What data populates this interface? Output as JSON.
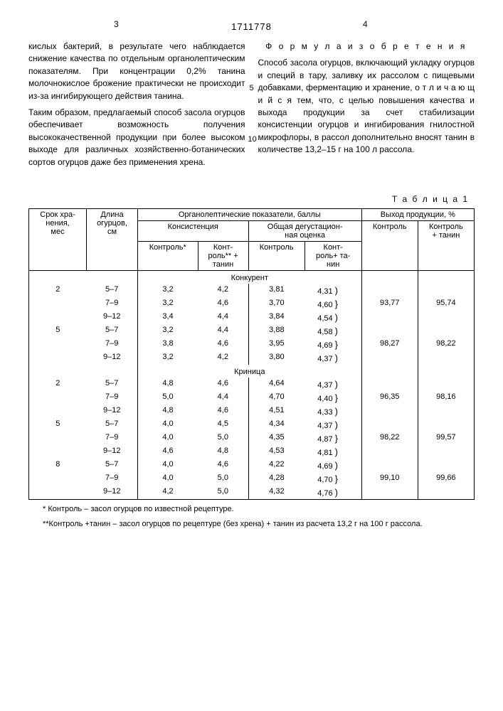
{
  "doc_number": "1711778",
  "page_marker_left": "3",
  "page_marker_right": "4",
  "left_col": {
    "para1": "кислых бактерий, в результате чего наблюдается снижение качества по отдельным органолептическим показателям. При концентрации 0,2% танина молочнокислое брожение практически не происходит из-за ингибирующего действия танина.",
    "para2": "Таким образом, предлагаемый способ засола огурцов обеспечивает возможность получения высококачественной продукции при более высоком выходе для различных хозяйственно-ботанических сортов огурцов даже без применения хрена."
  },
  "right_col": {
    "formula_title": "Ф о р м у л а  и з о б р е т е н и я",
    "para1": "Способ засола огурцов, включающий укладку огурцов и специй в тару, заливку их рассолом с пищевыми добавками, ферментацию и хранение, о т л и ч а ю щ и й с я тем, что, с целью повышения качества и выхода продукции за счет стабилизации консистенции огурцов и ингибирования гнилостной микрофлоры, в рассол дополнительно вносят танин в количестве 13,2–15 г на 100 л рассола."
  },
  "line_markers": {
    "five": "5",
    "ten": "10"
  },
  "table": {
    "title": "Т а б л и ц а  1",
    "headers": {
      "h_srok": "Срок хра-\nнения,\nмес",
      "h_dlina": "Длина\nогурцов,\nсм",
      "h_org": "Органолептические показатели, баллы",
      "h_kons": "Консистенция",
      "h_deg": "Общая дегустацион-\nная оценка",
      "h_vyhod": "Выход продукции, %",
      "h_kontrol": "Контроль*",
      "h_kontrol_tanin": "Конт-\nроль** +\nтанин",
      "h_kontrol2": "Контроль",
      "h_kontrol_tanin2": "Конт-\nроль+ та-\nнин",
      "h_vk": "Контроль",
      "h_vkt": "Контроль\n+ танин"
    },
    "sections": [
      {
        "name": "Конкурент",
        "rows": [
          {
            "m": "2",
            "len": "5–7",
            "kk": "3,2",
            "kt": "4,2",
            "dk": "3,81",
            "dt": "4,31",
            "vk": "",
            "vt": ""
          },
          {
            "m": "",
            "len": "7–9",
            "kk": "3,2",
            "kt": "4,6",
            "dk": "3,70",
            "dt": "4,60",
            "vk": "93,77",
            "vt": "95,74"
          },
          {
            "m": "",
            "len": "9–12",
            "kk": "3,4",
            "kt": "4,4",
            "dk": "3,84",
            "dt": "4,54",
            "vk": "",
            "vt": ""
          },
          {
            "m": "5",
            "len": "5–7",
            "kk": "3,2",
            "kt": "4,4",
            "dk": "3,88",
            "dt": "4,58",
            "vk": "",
            "vt": ""
          },
          {
            "m": "",
            "len": "7–9",
            "kk": "3,8",
            "kt": "4,6",
            "dk": "3,95",
            "dt": "4,69",
            "vk": "98,27",
            "vt": "98,22"
          },
          {
            "m": "",
            "len": "9–12",
            "kk": "3,2",
            "kt": "4,2",
            "dk": "3,80",
            "dt": "4,37",
            "vk": "",
            "vt": ""
          }
        ]
      },
      {
        "name": "Криница",
        "rows": [
          {
            "m": "2",
            "len": "5–7",
            "kk": "4,8",
            "kt": "4,6",
            "dk": "4,64",
            "dt": "4,37",
            "vk": "",
            "vt": ""
          },
          {
            "m": "",
            "len": "7–9",
            "kk": "5,0",
            "kt": "4,4",
            "dk": "4,70",
            "dt": "4,40",
            "vk": "96,35",
            "vt": "98,16"
          },
          {
            "m": "",
            "len": "9–12",
            "kk": "4,8",
            "kt": "4,6",
            "dk": "4,51",
            "dt": "4,33",
            "vk": "",
            "vt": ""
          },
          {
            "m": "5",
            "len": "5–7",
            "kk": "4,0",
            "kt": "4,5",
            "dk": "4,34",
            "dt": "4,37",
            "vk": "",
            "vt": ""
          },
          {
            "m": "",
            "len": "7–9",
            "kk": "4,0",
            "kt": "5,0",
            "dk": "4,35",
            "dt": "4,87",
            "vk": "98,22",
            "vt": "99,57"
          },
          {
            "m": "",
            "len": "9–12",
            "kk": "4,6",
            "kt": "4,8",
            "dk": "4,53",
            "dt": "4,81",
            "vk": "",
            "vt": ""
          },
          {
            "m": "8",
            "len": "5–7",
            "kk": "4,0",
            "kt": "4,6",
            "dk": "4,22",
            "dt": "4,69",
            "vk": "",
            "vt": ""
          },
          {
            "m": "",
            "len": "7–9",
            "kk": "4,0",
            "kt": "5,0",
            "dk": "4,28",
            "dt": "4,70",
            "vk": "99,10",
            "vt": "99,66"
          },
          {
            "m": "",
            "len": "9–12",
            "kk": "4,2",
            "kt": "5,0",
            "dk": "4,32",
            "dt": "4,76",
            "vk": "",
            "vt": ""
          }
        ]
      }
    ],
    "footnote1": "* Контроль – засол огурцов по известной рецептуре.",
    "footnote2": "**Контроль +танин – засол огурцов по рецептуре (без хрена) + танин из расчета 13,2 г на 100 г рассола."
  }
}
